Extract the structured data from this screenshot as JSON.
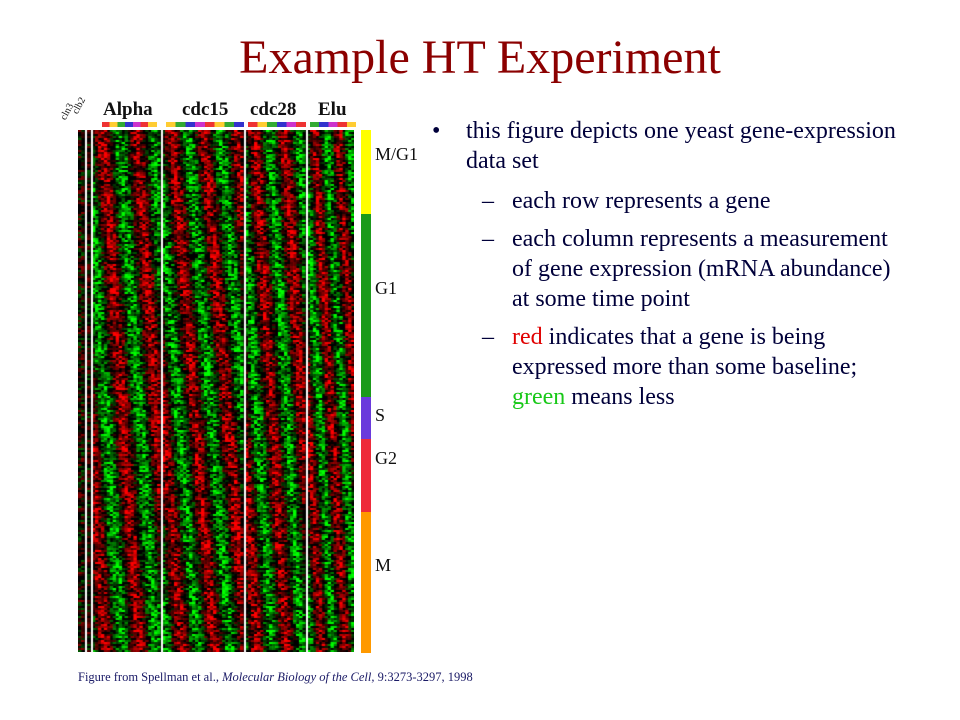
{
  "slide": {
    "title": "Example HT Experiment"
  },
  "figure": {
    "column_groups": [
      "Alpha",
      "cdc15",
      "cdc28",
      "Elu"
    ],
    "condition_labels": [
      "cln3",
      "clb2"
    ],
    "phases": [
      {
        "label": "M/G1",
        "color": "#ffff00",
        "fraction": 0.16
      },
      {
        "label": "G1",
        "color": "#1a9a1a",
        "fraction": 0.35
      },
      {
        "label": "S",
        "color": "#6a3adc",
        "fraction": 0.08
      },
      {
        "label": "G2",
        "color": "#ee2a3a",
        "fraction": 0.14
      },
      {
        "label": "M",
        "color": "#ff9900",
        "fraction": 0.27
      }
    ],
    "colors": {
      "up": "#e00000",
      "down": "#00d000",
      "background": "#000000"
    }
  },
  "bullets": {
    "main": "this figure depicts one yeast gene-expression data set",
    "sub1": "each row represents a gene",
    "sub2": "each column represents a measurement of gene expression (mRNA abundance) at some time point",
    "sub3_red": "red",
    "sub3_mid": " indicates that a gene is being expressed more than some baseline; ",
    "sub3_green": "green",
    "sub3_end": " means less"
  },
  "caption": {
    "prefix": "Figure from Spellman et al., ",
    "journal": "Molecular Biology of the Cell,",
    "citation": " 9:3273-3297, 1998"
  }
}
